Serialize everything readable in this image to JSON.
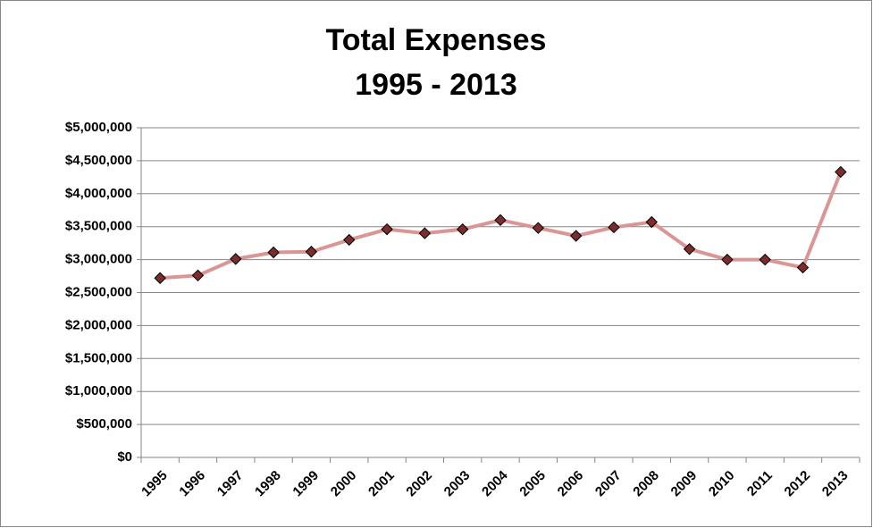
{
  "chart_data": {
    "type": "line",
    "title": [
      "Total Expenses",
      "1995 - 2013"
    ],
    "categories": [
      "1995",
      "1996",
      "1997",
      "1998",
      "1999",
      "2000",
      "2001",
      "2002",
      "2003",
      "2004",
      "2005",
      "2006",
      "2007",
      "2008",
      "2009",
      "2010",
      "2011",
      "2012",
      "2013"
    ],
    "series": [
      {
        "name": "Total Expenses",
        "color": "#d99694",
        "marker_color": "#7b2c2c",
        "values": [
          2720000,
          2760000,
          3010000,
          3110000,
          3120000,
          3300000,
          3460000,
          3400000,
          3460000,
          3600000,
          3480000,
          3360000,
          3490000,
          3570000,
          3160000,
          3000000,
          3000000,
          2880000,
          4330000
        ]
      }
    ],
    "ylim": [
      0,
      5000000
    ],
    "yticks": [
      {
        "value": 0,
        "label": "$0"
      },
      {
        "value": 500000,
        "label": "$500,000"
      },
      {
        "value": 1000000,
        "label": "$1,000,000"
      },
      {
        "value": 1500000,
        "label": "$1,500,000"
      },
      {
        "value": 2000000,
        "label": "$2,000,000"
      },
      {
        "value": 2500000,
        "label": "$2,500,000"
      },
      {
        "value": 3000000,
        "label": "$3,000,000"
      },
      {
        "value": 3500000,
        "label": "$3,500,000"
      },
      {
        "value": 4000000,
        "label": "$4,000,000"
      },
      {
        "value": 4500000,
        "label": "$4,500,000"
      },
      {
        "value": 5000000,
        "label": "$5,000,000"
      }
    ],
    "grid": true
  }
}
